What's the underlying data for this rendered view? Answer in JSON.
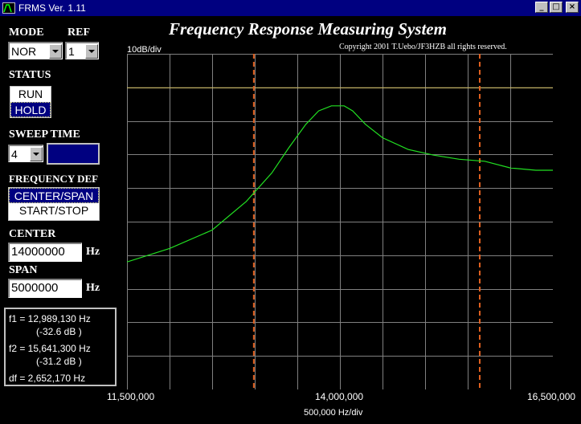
{
  "window": {
    "title": "FRMS Ver. 1.11",
    "buttons": {
      "minimize": "_",
      "maximize": "□",
      "close": "×"
    }
  },
  "header": {
    "title": "Frequency Response Measuring System",
    "copyright": "Copyright 2001 T.Uebo/JF3HZB all rights reserved."
  },
  "controls": {
    "mode": {
      "label": "MODE",
      "value": "NOR"
    },
    "ref": {
      "label": "REF",
      "value": "1"
    },
    "status": {
      "label": "STATUS",
      "options": [
        "RUN",
        "HOLD"
      ],
      "selected": "HOLD"
    },
    "sweep_time": {
      "label": "SWEEP TIME",
      "value": "4",
      "color": "#000080"
    },
    "frequency_def": {
      "label": "FREQUENCY DEF",
      "options": [
        "CENTER/SPAN",
        "START/STOP"
      ],
      "selected": "CENTER/SPAN"
    },
    "center": {
      "label": "CENTER",
      "value": "14000000",
      "unit": "Hz"
    },
    "span": {
      "label": "SPAN",
      "value": "5000000",
      "unit": "Hz"
    }
  },
  "markers": {
    "f1": "f1 = 12,989,130 Hz",
    "f1_db": "(-32.6 dB )",
    "f2": "f2 = 15,641,300 Hz",
    "f2_db": "(-31.2 dB )",
    "df": "df = 2,652,170 Hz"
  },
  "chart_data": {
    "type": "line",
    "y_scale_label": "10dB/div",
    "x_unit_label": "500,000 Hz/div",
    "x_tick_labels": [
      "11,500,000",
      "14,000,000",
      "16,500,000"
    ],
    "xlim": [
      11500000,
      16500000
    ],
    "x_divisions": 10,
    "y_divisions": 10,
    "grid": true,
    "reference_level_fraction": 0.1,
    "markers": [
      12989130,
      15641300
    ],
    "colors": {
      "trace": "#22e022",
      "grid": "#808080",
      "marker": "#e06020",
      "reference": "#d4c060",
      "background": "#000000"
    },
    "series": [
      {
        "x": [
          11500000,
          12000000,
          12500000,
          12900000,
          13200000,
          13400000,
          13600000,
          13750000,
          13900000,
          14050000,
          14150000,
          14300000,
          14500000,
          14800000,
          15100000,
          15400000,
          15700000,
          16000000,
          16300000,
          16500000
        ],
        "y": [
          -62,
          -58,
          -52.5,
          -44,
          -35.5,
          -28,
          -21,
          -17,
          -15.5,
          -15.5,
          -17,
          -21,
          -25,
          -28.5,
          -30.2,
          -31.4,
          -32,
          -34,
          -34.7,
          -34.7
        ]
      }
    ]
  }
}
